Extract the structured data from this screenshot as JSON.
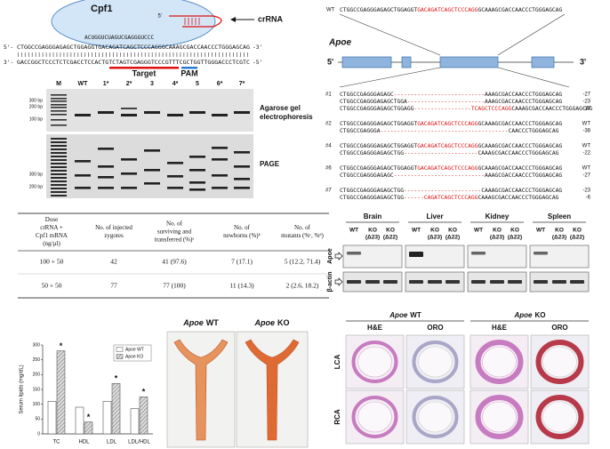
{
  "cpf1_diagram": {
    "protein": "Cpf1",
    "crrna_label": "crRNA",
    "crrna_5": "5'",
    "crrna_seq": "ACUGGUCUAGUCGAGGGUCCC",
    "top_strand": {
      "left": "5'-",
      "seq": "CTGGCCGAGGGAGAGCTGGAGGTGACAGATCAGCTCCCAGGGCAAAGCGACCAACCCTGGGAGCAG",
      "right": "-3'"
    },
    "bottom_strand": {
      "left": "3'-",
      "seq": "GACCGGCTCCCTCTCGACCTCCACTGTCTAGTCGAGGGTCCCGTTTCGCTGGTTGGGACCCTCGTC",
      "right": "-5'"
    },
    "target": "Target",
    "pam": "PAM"
  },
  "gel": {
    "lanes": [
      "M",
      "WT",
      "1*",
      "2*",
      "3",
      "4*",
      "5",
      "6*",
      "7*"
    ],
    "agarose_ladder": [
      "300 bp",
      "200 bp",
      "100 bp"
    ],
    "page_ladder": [
      "300 bp",
      "200 bp"
    ],
    "agarose_label": [
      "Agarose gel",
      "electrophoresis"
    ],
    "page_label": "PAGE"
  },
  "table": {
    "header": [
      [
        "Dose",
        "crRNA +",
        "Cpf1 mRNA",
        "(ng/µl)"
      ],
      [
        "No. of injected",
        "zygotes"
      ],
      [
        "No. of",
        "surviving and",
        "transferred (%)ᵃ"
      ],
      [
        "No. of",
        "newborns (%)ᵇ"
      ],
      [
        "No. of",
        "mutants (%ᶜ, %ᵈ)"
      ]
    ],
    "rows": [
      [
        "100 + 50",
        "42",
        "41 (97.6)",
        "7 (17.1)",
        "5 (12.2, 71.4)"
      ],
      [
        "50 + 50",
        "77",
        "77 (100)",
        "11 (14.3)",
        "2 (2.6, 18.2)"
      ]
    ]
  },
  "bar_chart": {
    "type": "bar",
    "y_label": "Serum lipids (mg/dL)",
    "categories": [
      "TC",
      "HDL",
      "LDL",
      "LDL/HDL"
    ],
    "series": [
      {
        "name": "Apoe WT",
        "color": "#ffffff",
        "values": [
          110,
          90,
          110,
          85
        ]
      },
      {
        "name": "Apoe KO",
        "color": "#dddddd",
        "pattern": "hatch",
        "values": [
          280,
          40,
          170,
          125
        ]
      }
    ],
    "significance": [
      "*",
      "*",
      "*",
      "*"
    ],
    "ylim": [
      0,
      300
    ],
    "yticks": [
      0,
      50,
      100,
      150,
      200,
      250,
      300
    ]
  },
  "aorta_photos": [
    {
      "gene": "Apoe",
      "genotype": "WT"
    },
    {
      "gene": "Apoe",
      "genotype": "KO"
    }
  ],
  "sequences": {
    "wt": {
      "label": "WT",
      "segments": [
        {
          "text": "CTGGCCGAGGGAGAGCTGGAGGT",
          "color": "#111111"
        },
        {
          "text": "GACAGATCAGCTCCCAGG",
          "color": "#e01010"
        },
        {
          "text": "GCAAAGCGACCAACCCTGGGAGCAG",
          "color": "#111111"
        }
      ]
    },
    "gene": {
      "name": "Apoe",
      "left": "5'",
      "right": "3'"
    },
    "alleles": [
      {
        "id": "#1",
        "lines": [
          {
            "segments": [
              {
                "text": "CTGGCCGAGGGAGAGC",
                "color": "#111111"
              },
              {
                "text": "---------------------------",
                "color": "#e01010"
              },
              {
                "text": "AAAGCGACCAACCCTGGGAGCAG",
                "color": "#111111"
              }
            ],
            "indel": "-27"
          },
          {
            "segments": [
              {
                "text": "CTGGCCGAGGGAGAGCTGGA",
                "color": "#111111"
              },
              {
                "text": "-----------------------",
                "color": "#e01010"
              },
              {
                "text": "AAAGCGACCAACCCTGGGAGCAG",
                "color": "#111111"
              }
            ],
            "indel": "-23"
          },
          {
            "segments": [
              {
                "text": "CTGGCCGAGGGAGAGCTGGAGG",
                "color": "#111111"
              },
              {
                "text": "-----------------TCAGCTCCCAGG",
                "color": "#e01010"
              },
              {
                "text": "CAAAGCGACCAACCCTGGGAGCAG",
                "color": "#111111"
              }
            ],
            "indel": "-17"
          }
        ]
      },
      {
        "id": "#2",
        "lines": [
          {
            "segments": [
              {
                "text": "CTGGCCGAGGGAGAGCTGGAGGT",
                "color": "#111111"
              },
              {
                "text": "GACAGATCAGCTCCCAGG",
                "color": "#e01010"
              },
              {
                "text": "GCAAAGCGACCAACCCTGGGAGCAG",
                "color": "#111111"
              }
            ],
            "indel": "WT"
          },
          {
            "segments": [
              {
                "text": "CTGGCCGAGGGA",
                "color": "#111111"
              },
              {
                "text": "--------------------------------------",
                "color": "#e01010"
              },
              {
                "text": "CAACCCTGGGAGCAG",
                "color": "#111111"
              }
            ],
            "indel": "-38"
          }
        ]
      },
      {
        "id": "#4",
        "lines": [
          {
            "segments": [
              {
                "text": "CTGGCCGAGGGAGAGCTGGAGGT",
                "color": "#111111"
              },
              {
                "text": "GACAGATCAGCTCCCAGG",
                "color": "#e01010"
              },
              {
                "text": "GCAAAGCGACCAACCCTGGGAGCAG",
                "color": "#111111"
              }
            ],
            "indel": "WT"
          },
          {
            "segments": [
              {
                "text": "CTGGCCGAGGGAGAGCTGG",
                "color": "#111111"
              },
              {
                "text": "----------------------",
                "color": "#e01010"
              },
              {
                "text": "CAAAGCGACCAACCCTGGGAGCAG",
                "color": "#111111"
              }
            ],
            "indel": "-22"
          }
        ]
      },
      {
        "id": "#6",
        "lines": [
          {
            "segments": [
              {
                "text": "CTGGCCGAGGGAGAGCTGGAGGT",
                "color": "#111111"
              },
              {
                "text": "GACAGATCAGCTCCCAGG",
                "color": "#e01010"
              },
              {
                "text": "GCAAAGCGACCAACCCTGGGAGCAG",
                "color": "#111111"
              }
            ],
            "indel": "WT"
          },
          {
            "segments": [
              {
                "text": "CTGGCCGAGGGAGAGC",
                "color": "#111111"
              },
              {
                "text": "---------------------------",
                "color": "#e01010"
              },
              {
                "text": "AAAGCGACCAACCCTGGGAGCAG",
                "color": "#111111"
              }
            ],
            "indel": "-27"
          }
        ]
      },
      {
        "id": "#7",
        "lines": [
          {
            "segments": [
              {
                "text": "CTGGCCGAGGGAGAGCTGG",
                "color": "#111111"
              },
              {
                "text": "-----------------------",
                "color": "#e01010"
              },
              {
                "text": "CAAAGCGACCAACCCTGGGAGCAG",
                "color": "#111111"
              }
            ],
            "indel": "-23"
          },
          {
            "segments": [
              {
                "text": "CTGGCCGAGGGAGAGCTGG",
                "color": "#111111"
              },
              {
                "text": "------CAGATCAGCTCCCAGG",
                "color": "#e01010"
              },
              {
                "text": "CAAAGCGACCAACCCTGGGAGCAG",
                "color": "#111111"
              }
            ],
            "indel": "-6"
          }
        ]
      }
    ]
  },
  "western": {
    "tissues": [
      "Brain",
      "Liver",
      "Kidney",
      "Spleen"
    ],
    "lanes": [
      [
        "WT"
      ],
      [
        "KO",
        "(Δ23)"
      ],
      [
        "KO",
        "(Δ22)"
      ]
    ],
    "proteins": [
      "Apoe",
      "β-actin"
    ]
  },
  "histology": {
    "groups": [
      {
        "gene": "Apoe",
        "genotype": "WT"
      },
      {
        "gene": "Apoe",
        "genotype": "KO"
      }
    ],
    "stains": [
      "H&E",
      "ORO",
      "H&E",
      "ORO"
    ],
    "rows": [
      "LCA",
      "RCA"
    ]
  }
}
